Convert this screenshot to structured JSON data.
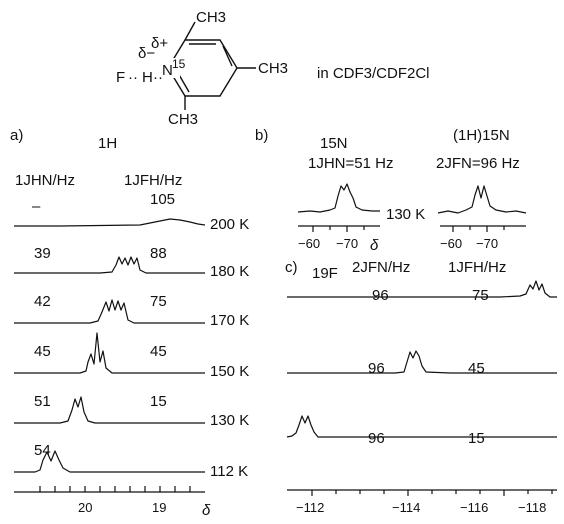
{
  "structure": {
    "ch3_top": "CH3",
    "ch3_right": "CH3",
    "ch3_bottom": "CH3",
    "delta_minus": "δ−",
    "delta_plus": "δ+",
    "f_label": "F",
    "h_label": "H",
    "n_label": "N",
    "n_superscript": "15",
    "solvent": "in CDF3/CDF2Cl"
  },
  "panel_a": {
    "label": "a)",
    "nucleus": "1H",
    "col_left": "1JHN/Hz",
    "col_right": "1JFH/Hz",
    "axis_label": "δ",
    "ticks": [
      "20",
      "19"
    ],
    "rows": [
      {
        "jhn": "–",
        "jfh": "105",
        "temp": "200 K"
      },
      {
        "jhn": "39",
        "jfh": "88",
        "temp": "180 K"
      },
      {
        "jhn": "42",
        "jfh": "75",
        "temp": "170 K"
      },
      {
        "jhn": "45",
        "jfh": "45",
        "temp": "150 K"
      },
      {
        "jhn": "51",
        "jfh": "15",
        "temp": "130 K"
      },
      {
        "jhn": "54",
        "jfh": "",
        "temp": "112 K"
      }
    ]
  },
  "panel_b": {
    "label": "b)",
    "left_title": "15N",
    "left_coupling": "1JHN=51 Hz",
    "right_title": "(1H)15N",
    "right_coupling": "2JFN=96 Hz",
    "temp": "130 K",
    "axis_label": "δ",
    "ticks_left": [
      "−60",
      "−70"
    ],
    "ticks_right": [
      "−60",
      "−70"
    ]
  },
  "panel_c": {
    "label": "c)",
    "nucleus": "19F",
    "col_left": "2JFN/Hz",
    "col_right": "1JFH/Hz",
    "ticks": [
      "−112",
      "−114",
      "−116",
      "−118"
    ],
    "rows": [
      {
        "jfn": "96",
        "jfh": "75"
      },
      {
        "jfn": "96",
        "jfh": "45"
      },
      {
        "jfn": "96",
        "jfh": "15"
      }
    ]
  }
}
